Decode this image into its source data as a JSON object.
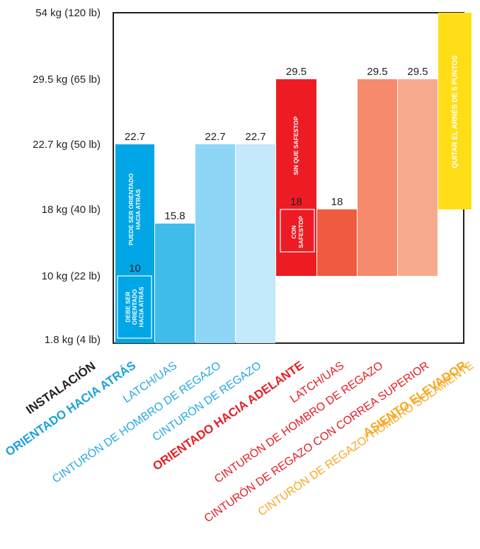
{
  "chart_data": {
    "type": "bar",
    "title": "",
    "y_ticks": [
      "54 kg (120 lb)",
      "29.5 kg (65 lb)",
      "22.7 kg (50 lb)",
      "18 kg (40 lb)",
      "10 kg (22 lb)",
      "1.8 kg (4 lb)"
    ],
    "y_tick_values": [
      54,
      29.5,
      22.7,
      18,
      10,
      1.8
    ],
    "bars": [
      {
        "id": "rf1",
        "bottom": 1.8,
        "top": 22.7,
        "value_label": "22.7",
        "color": "#00a6e6"
      },
      {
        "id": "rf2",
        "bottom": 1.8,
        "top": 15.8,
        "value_label": "15.8",
        "color": "#3fbcea"
      },
      {
        "id": "rf3",
        "bottom": 1.8,
        "top": 22.7,
        "value_label": "22.7",
        "color": "#8dd6f5"
      },
      {
        "id": "rf4",
        "bottom": 1.8,
        "top": 22.7,
        "value_label": "22.7",
        "color": "#c3e9fa"
      },
      {
        "id": "ff1",
        "bottom": 10,
        "top": 29.5,
        "value_label": "29.5",
        "color": "#ed1c24"
      },
      {
        "id": "ff2",
        "bottom": 10,
        "top": 18,
        "value_label": "18",
        "color": "#f05a3f"
      },
      {
        "id": "ff3",
        "bottom": 10,
        "top": 29.5,
        "value_label": "29.5",
        "color": "#f58b6c"
      },
      {
        "id": "ff4",
        "bottom": 10,
        "top": 29.5,
        "value_label": "29.5",
        "color": "#f8aa8e"
      },
      {
        "id": "boost",
        "bottom": 18,
        "top": 54,
        "value_label": "",
        "color": "#ffde17"
      }
    ],
    "inner_values": [
      {
        "bar": "rf1",
        "value": 10,
        "label": "10"
      },
      {
        "bar": "ff1",
        "value": 18,
        "label": "18"
      }
    ],
    "bar_text": {
      "rf_may": [
        "PUEDE SER ORIENTADO",
        "HACIA ATRÁS"
      ],
      "rf_must": [
        "DEBE SER",
        "ORIENTADO",
        "HACIA ATRÁS"
      ],
      "ff_without": "SIN QUE SAFESTOP",
      "ff_with": [
        "CON",
        "SAFESTOP"
      ],
      "harness": "QUITAR EL ARNÉS DE 5 PUNTOS"
    },
    "x_labels": [
      {
        "text": "INSTALACIÓN",
        "color": "#231f20",
        "bold": true
      },
      {
        "text": "ORIENTADO HACIA ATRÁS",
        "color": "#1aa0df",
        "bold": true
      },
      {
        "text": "LATCH/UAS",
        "color": "#29a9e1",
        "bold": false
      },
      {
        "text": "CINTURÓN DE HOMBRO DE REGAZO",
        "color": "#29a9e1",
        "bold": false
      },
      {
        "text": "CINTURÓN DE REGAZO",
        "color": "#29a9e1",
        "bold": false
      },
      {
        "text": "ORIENTADO HACIA ADELANTE",
        "color": "#e41f26",
        "bold": true
      },
      {
        "text": "LATCH/UAS",
        "color": "#e41f26",
        "bold": false
      },
      {
        "text": "CINTURÓN DE HOMBRO DE REGAZO",
        "color": "#e41f26",
        "bold": false
      },
      {
        "text": "CINTURÓN DE REGAZO CON CORREA SUPERIOR",
        "color": "#e41f26",
        "bold": false
      },
      {
        "text": "ASIENTO ELEVADOR",
        "color": "#f7a823",
        "bold": true
      },
      {
        "text": "CINTURÓN DE REGAZO/ HOMBRO SOLAMENTE",
        "color": "#f7a823",
        "bold": false
      }
    ]
  }
}
